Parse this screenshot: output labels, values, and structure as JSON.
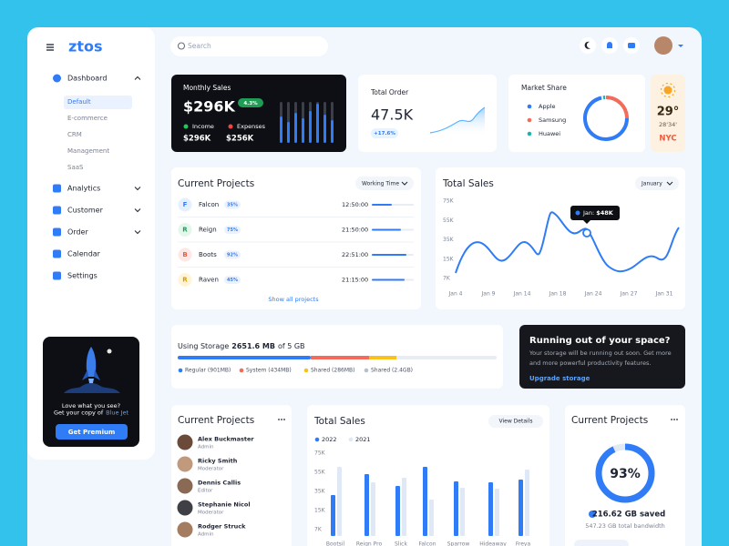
{
  "sidebar": {
    "logo": "ztos",
    "menu": [
      "Dashboard",
      "Analytics",
      "Customer",
      "Order",
      "Calendar",
      "Settings"
    ],
    "submenu": [
      "Default",
      "E-commerce",
      "CRM",
      "Management",
      "SaaS"
    ],
    "promo": {
      "line1": "Love what you see?",
      "line2": "Get your copy of",
      "highlight": "Blue Jet",
      "button": "Get Premium"
    }
  },
  "search_placeholder": "Search",
  "monthly_sales": {
    "title": "Monthly Sales",
    "value": "$296K",
    "change": "4.3%",
    "income_label": "Income",
    "expenses_label": "Expenses",
    "income": "$296K",
    "expenses": "$256K"
  },
  "total_order": {
    "title": "Total Order",
    "value": "47.5K",
    "change": "+17.6%"
  },
  "market_share": {
    "title": "Market Share",
    "items": [
      "Apple",
      "Samsung",
      "Huawei"
    ]
  },
  "weather": {
    "temp": "29°",
    "coords": "28'34'",
    "city": "NYC"
  },
  "current_projects": {
    "title": "Current Projects",
    "filter": "Working Time",
    "rows": [
      {
        "initial": "F",
        "name": "Falcon",
        "percent": "35%",
        "time": "12:50:00"
      },
      {
        "initial": "R",
        "name": "Reign",
        "percent": "75%",
        "time": "21:50:00"
      },
      {
        "initial": "B",
        "name": "Boots",
        "percent": "92%",
        "time": "22:51:00"
      },
      {
        "initial": "R",
        "name": "Raven",
        "percent": "45%",
        "time": "21:15:00"
      }
    ],
    "link": "Show all projects"
  },
  "total_sales": {
    "title": "Total Sales",
    "filter": "January",
    "yticks": [
      "75K",
      "55K",
      "35K",
      "15K",
      "7K"
    ],
    "xticks": [
      "Jan 4",
      "Jan 9",
      "Jan 14",
      "Jan 18",
      "Jan 24",
      "Jan 27",
      "Jan 31"
    ],
    "tooltip_label": "Jan:",
    "tooltip_value": "$48K"
  },
  "storage": {
    "label": "Using Storage",
    "used": "2651.6 MB",
    "total": "of 5 GB",
    "legend": [
      "Regular (901MB)",
      "System (434MB)",
      "Shared (286MB)",
      "Shared (2.4GB)"
    ]
  },
  "upgrade": {
    "title": "Running out of your space?",
    "text": [
      "Your storage will be running out soon. Get more",
      "and more powerful productivity features."
    ],
    "link": "Upgrade storage"
  },
  "team": {
    "title": "Current Projects",
    "members": [
      {
        "name": "Alex Buckmaster",
        "role": "Admin"
      },
      {
        "name": "Ricky Smith",
        "role": "Moderator"
      },
      {
        "name": "Dennis Callis",
        "role": "Editor"
      },
      {
        "name": "Stephanie Nicol",
        "role": "Moderator"
      },
      {
        "name": "Rodger Struck",
        "role": "Admin"
      }
    ]
  },
  "sales_bars": {
    "title": "Total Sales",
    "button": "View Details",
    "legend": [
      "2022",
      "2021"
    ],
    "yticks": [
      "75K",
      "55K",
      "35K",
      "15K",
      "7K"
    ],
    "categories": [
      "Bootsil",
      "Reign Pro",
      "Slick",
      "Falcon",
      "Sparrow",
      "Hideaway",
      "Freya"
    ]
  },
  "bandwidth": {
    "title": "Current Projects",
    "percent": 93,
    "percent_label": "93%",
    "saved": "216.62 GB saved",
    "total": "547.23 GB total bandwidth"
  }
}
